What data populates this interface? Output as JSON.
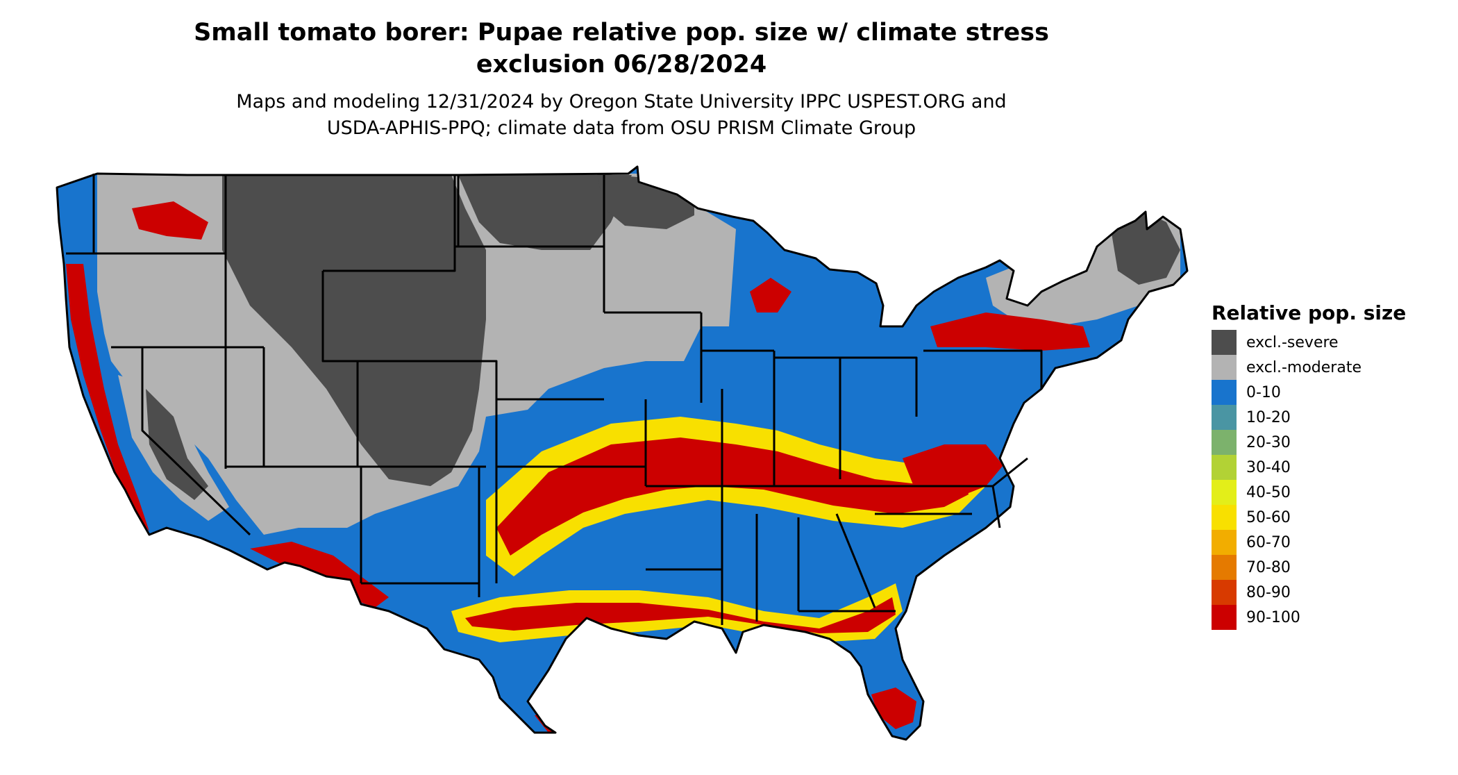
{
  "header": {
    "title_line1": "Small tomato borer: Pupae relative pop. size w/ climate stress",
    "title_line2": "exclusion 06/28/2024",
    "subtitle_line1": "Maps and modeling 12/31/2024 by Oregon State University IPPC USPEST.ORG and",
    "subtitle_line2": "USDA-APHIS-PPQ; climate data from OSU PRISM Climate Group"
  },
  "legend": {
    "title": "Relative pop. size",
    "items": [
      {
        "label": "excl.-severe",
        "color": "#4d4d4d"
      },
      {
        "label": "excl.-moderate",
        "color": "#b3b3b3"
      },
      {
        "label": "0-10",
        "color": "#1874cd"
      },
      {
        "label": "10-20",
        "color": "#4a95a3"
      },
      {
        "label": "20-30",
        "color": "#7cb26c"
      },
      {
        "label": "30-40",
        "color": "#b2d235"
      },
      {
        "label": "40-50",
        "color": "#e3ee19"
      },
      {
        "label": "50-60",
        "color": "#f8e000"
      },
      {
        "label": "60-70",
        "color": "#f2ad00"
      },
      {
        "label": "70-80",
        "color": "#e57a00"
      },
      {
        "label": "80-90",
        "color": "#d83a00"
      },
      {
        "label": "90-100",
        "color": "#cc0000"
      }
    ]
  },
  "map": {
    "region": "conterminous United States",
    "colors": {
      "severe": "#4d4d4d",
      "moderate": "#b3b3b3",
      "low": "#1874cd",
      "mid": "#f8e000",
      "high": "#cc0000",
      "border": "#000000"
    }
  }
}
